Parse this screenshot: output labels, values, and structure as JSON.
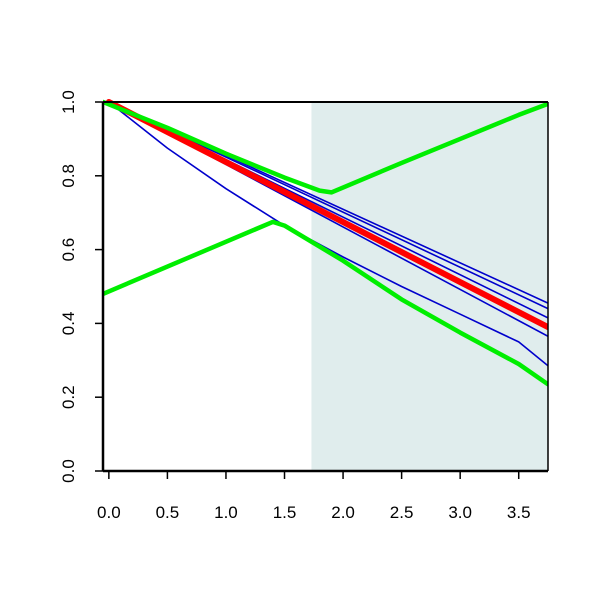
{
  "chart_data": {
    "type": "line",
    "title": "",
    "xlabel": "",
    "ylabel": "",
    "xlim": [
      -0.05,
      3.75
    ],
    "ylim": [
      0.0,
      1.0
    ],
    "x_ticks": [
      0.0,
      0.5,
      1.0,
      1.5,
      2.0,
      2.5,
      3.0,
      3.5
    ],
    "x_tick_labels": [
      "0.0",
      "0.5",
      "1.0",
      "1.5",
      "2.0",
      "2.5",
      "3.0",
      "3.5"
    ],
    "y_ticks": [
      0.0,
      0.2,
      0.4,
      0.6,
      0.8,
      1.0
    ],
    "y_tick_labels": [
      "0.0",
      "0.2",
      "0.4",
      "0.6",
      "0.8",
      "1.0"
    ],
    "grid": false,
    "shaded_region": {
      "x_start": 1.73,
      "x_end": 3.75,
      "color": "#e0eded"
    },
    "series": [
      {
        "color": "#0000cc",
        "width": 1.6,
        "x": [
          0.0,
          3.75
        ],
        "y": [
          1.0,
          0.455
        ]
      },
      {
        "color": "#0000cc",
        "width": 1.6,
        "x": [
          0.0,
          3.75
        ],
        "y": [
          1.0,
          0.44
        ]
      },
      {
        "color": "#0000cc",
        "width": 1.6,
        "x": [
          0.0,
          3.75
        ],
        "y": [
          1.0,
          0.415
        ]
      },
      {
        "color": "#0000cc",
        "width": 1.6,
        "x": [
          0.0,
          3.75
        ],
        "y": [
          1.0,
          0.365
        ]
      },
      {
        "color": "#0000cc",
        "width": 1.6,
        "x": [
          0.0,
          0.5,
          1.0,
          1.5,
          2.0,
          2.5,
          3.0,
          3.5,
          3.75
        ],
        "y": [
          1.0,
          0.875,
          0.765,
          0.665,
          0.58,
          0.5,
          0.425,
          0.35,
          0.285
        ]
      },
      {
        "color": "#ff0000",
        "width": 6,
        "x": [
          0.0,
          3.75
        ],
        "y": [
          1.0,
          0.39
        ]
      },
      {
        "color": "#00ee00",
        "width": 4.5,
        "x": [
          -0.05,
          1.4,
          1.5,
          2.0,
          2.5,
          3.0,
          3.5,
          3.75
        ],
        "y": [
          0.48,
          0.675,
          0.665,
          0.57,
          0.465,
          0.375,
          0.29,
          0.235
        ]
      },
      {
        "color": "#00ee00",
        "width": 4.5,
        "x": [
          -0.05,
          0.5,
          1.0,
          1.5,
          1.8,
          1.9,
          2.5,
          3.0,
          3.5,
          3.75
        ],
        "y": [
          1.0,
          0.93,
          0.86,
          0.795,
          0.76,
          0.755,
          0.835,
          0.9,
          0.965,
          0.995
        ]
      }
    ]
  }
}
